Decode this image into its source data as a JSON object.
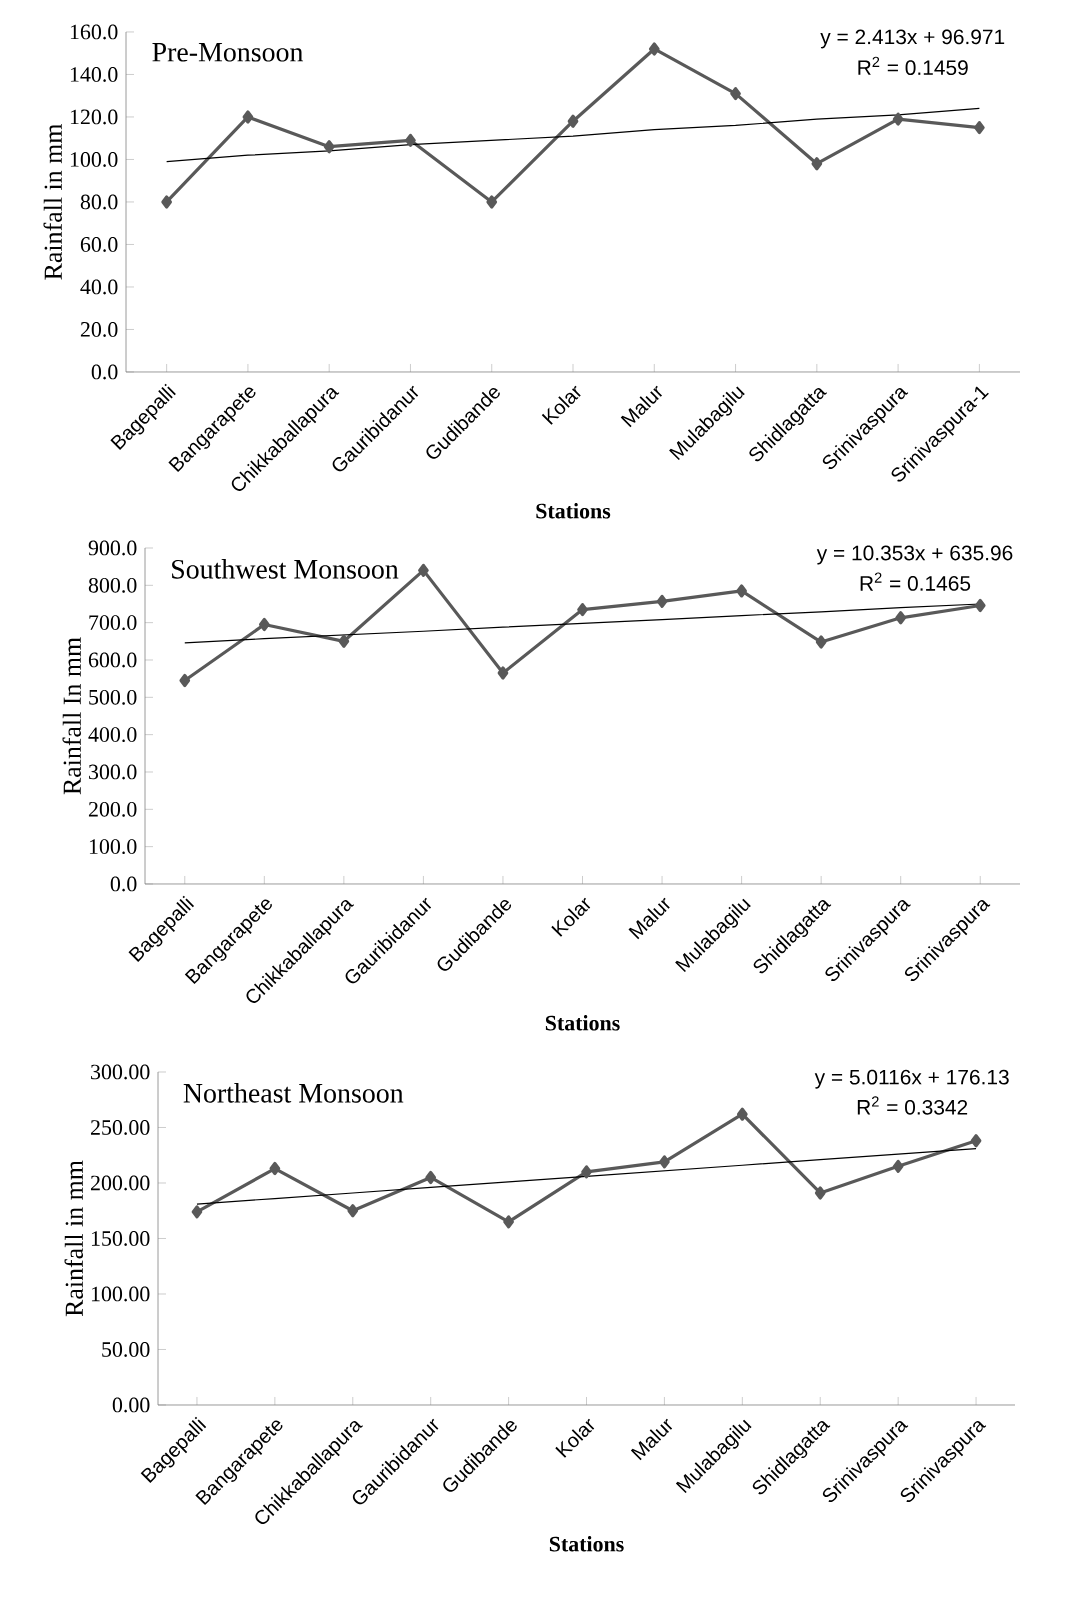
{
  "chart_data": [
    {
      "type": "line",
      "title": "Pre-Monsoon",
      "xlabel": "Stations",
      "ylabel": "Rainfall in mm",
      "categories": [
        "Bagepalli",
        "Bangarapete",
        "Chikkaballapura",
        "Gauribidanur",
        "Gudibande",
        "Kolar",
        "Malur",
        "Mulabagilu",
        "Shidlagatta",
        "Srinivaspura",
        "Srinivaspura-1"
      ],
      "series": [
        {
          "color": "#595959",
          "marker": "diamond",
          "values": [
            80,
            120,
            106,
            109,
            80,
            118,
            152,
            131,
            98,
            119,
            115
          ]
        },
        {
          "color": "#000000",
          "marker": "none",
          "values": [
            99,
            102,
            104,
            107,
            109,
            111,
            114,
            116,
            119,
            121,
            124
          ]
        }
      ],
      "ylim": [
        0,
        160
      ],
      "yticks": [
        {
          "value": 0,
          "label": "0.0"
        },
        {
          "value": 20,
          "label": "20.0"
        },
        {
          "value": 40,
          "label": "40.0"
        },
        {
          "value": 60,
          "label": "60.0"
        },
        {
          "value": 80,
          "label": "80.0"
        },
        {
          "value": 100,
          "label": "100.0"
        },
        {
          "value": 120,
          "label": "120.0"
        },
        {
          "value": 140,
          "label": "140.0"
        },
        {
          "value": 160,
          "label": "160.0"
        }
      ],
      "annotations": [
        "y = 2.413x + 96.971",
        "R$^{2}$ = 0.1459"
      ]
    },
    {
      "type": "line",
      "title": "Southwest Monsoon",
      "xlabel": "Stations",
      "ylabel": "Rainfall In mm",
      "categories": [
        "Bagepalli",
        "Bangarapete",
        "Chikkaballapura",
        "Gauribidanur",
        "Gudibande",
        "Kolar",
        "Malur",
        "Mulabagilu",
        "Shidlagatta",
        "Srinivaspura",
        "Srinivaspura"
      ],
      "series": [
        {
          "color": "#595959",
          "marker": "diamond",
          "values": [
            545,
            695,
            650,
            840,
            565,
            735,
            757,
            785,
            648,
            713,
            746
          ]
        },
        {
          "color": "#000000",
          "marker": "none",
          "values": [
            646,
            657,
            667,
            677,
            688,
            698,
            708,
            719,
            729,
            740,
            750
          ]
        }
      ],
      "ylim": [
        0,
        900
      ],
      "yticks": [
        {
          "value": 0,
          "label": "0.0"
        },
        {
          "value": 100,
          "label": "100.0"
        },
        {
          "value": 200,
          "label": "200.0"
        },
        {
          "value": 300,
          "label": "300.0"
        },
        {
          "value": 400,
          "label": "400.0"
        },
        {
          "value": 500,
          "label": "500.0"
        },
        {
          "value": 600,
          "label": "600.0"
        },
        {
          "value": 700,
          "label": "700.0"
        },
        {
          "value": 800,
          "label": "800.0"
        },
        {
          "value": 900,
          "label": "900.0"
        }
      ],
      "annotations": [
        "y = 10.353x + 635.96",
        "R$^{2}$ = 0.1465"
      ]
    },
    {
      "type": "line",
      "title": "Northeast Monsoon",
      "xlabel": "Stations",
      "ylabel": "Rainfall in mm",
      "categories": [
        "Bagepalli",
        "Bangarapete",
        "Chikkaballapura",
        "Gauribidanur",
        "Gudibande",
        "Kolar",
        "Malur",
        "Mulabagilu",
        "Shidlagatta",
        "Srinivaspura",
        "Srinivaspura"
      ],
      "series": [
        {
          "color": "#595959",
          "marker": "diamond",
          "values": [
            174,
            213,
            175,
            205,
            165,
            210,
            219,
            262,
            191,
            215,
            238
          ]
        },
        {
          "color": "#000000",
          "marker": "none",
          "values": [
            181,
            186,
            191,
            196,
            201,
            206,
            211,
            216,
            221,
            226,
            231
          ]
        }
      ],
      "ylim": [
        0,
        300
      ],
      "yticks": [
        {
          "value": 0,
          "label": "0.00"
        },
        {
          "value": 50,
          "label": "50.00"
        },
        {
          "value": 100,
          "label": "100.00"
        },
        {
          "value": 150,
          "label": "150.00"
        },
        {
          "value": 200,
          "label": "200.00"
        },
        {
          "value": 250,
          "label": "250.00"
        },
        {
          "value": 300,
          "label": "300.00"
        }
      ],
      "annotations": [
        "y = 5.0116x + 176.13",
        "R$^{2}$ = 0.3342"
      ]
    }
  ]
}
